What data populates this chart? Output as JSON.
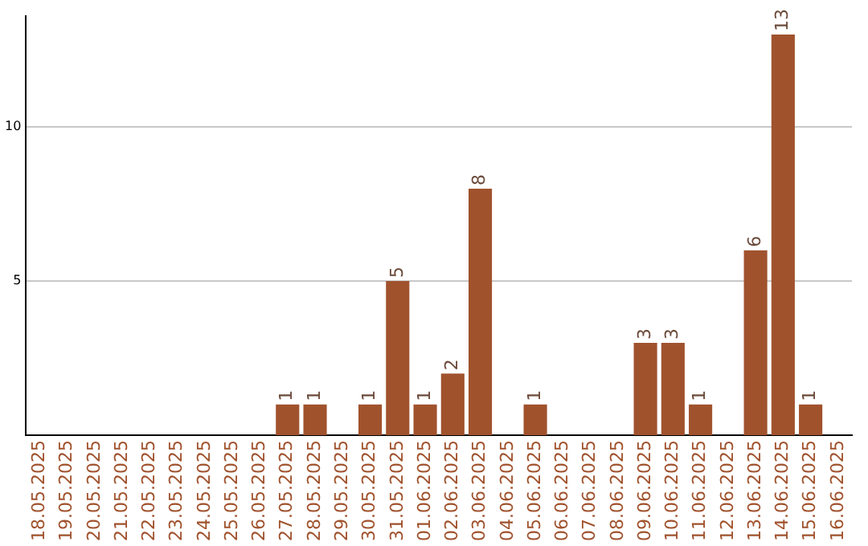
{
  "chart_data": {
    "type": "bar",
    "categories": [
      "18.05.2025",
      "19.05.2025",
      "20.05.2025",
      "21.05.2025",
      "22.05.2025",
      "23.05.2025",
      "24.05.2025",
      "25.05.2025",
      "26.05.2025",
      "27.05.2025",
      "28.05.2025",
      "29.05.2025",
      "30.05.2025",
      "31.05.2025",
      "01.06.2025",
      "02.06.2025",
      "03.06.2025",
      "04.06.2025",
      "05.06.2025",
      "06.06.2025",
      "07.06.2025",
      "08.06.2025",
      "09.06.2025",
      "10.06.2025",
      "11.06.2025",
      "12.06.2025",
      "13.06.2025",
      "14.06.2025",
      "15.06.2025",
      "16.06.2025"
    ],
    "values": [
      0,
      0,
      0,
      0,
      0,
      0,
      0,
      0,
      0,
      1,
      1,
      0,
      1,
      5,
      1,
      2,
      8,
      0,
      1,
      0,
      0,
      0,
      3,
      3,
      1,
      0,
      6,
      13,
      1,
      0
    ],
    "value_labels": [
      null,
      null,
      null,
      null,
      null,
      null,
      null,
      null,
      null,
      "1",
      "1",
      null,
      "1",
      "5",
      "1",
      "2",
      "8",
      null,
      "1",
      null,
      null,
      null,
      "3",
      "3",
      "1",
      null,
      "6",
      "13",
      "1",
      null
    ],
    "color": "#a0522d",
    "ylim": [
      0,
      13.6
    ],
    "yticks": [
      5,
      10
    ],
    "grid": "y",
    "legend": false
  }
}
